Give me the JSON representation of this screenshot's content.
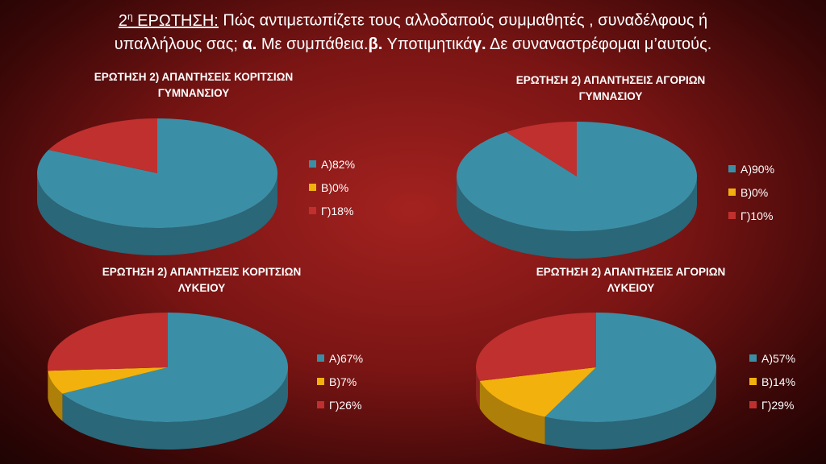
{
  "question": {
    "num": "2",
    "sup": "η",
    "label": " ΕΡΩΤΗΣΗ:",
    "text1": " Πώς αντιμετωπίζετε τους αλλοδαπούς συμμαθητές , συναδέλφους ή",
    "text2": "υπαλλήλους σας; ",
    "opt_a": "α.",
    "text3": "  Με συμπάθεια.",
    "opt_b": "β.",
    "text4": " Υποτιμητικά",
    "opt_c": "γ.",
    "text5": " Δε συναναστρέφομαι μ’αυτούς."
  },
  "colors": {
    "A": "#3a8fa6",
    "B": "#f2b10d",
    "C": "#c0302e"
  },
  "chart_data": [
    {
      "type": "pie",
      "title_line1": "ΕΡΩΤΗΣΗ 2) ΑΠΑΝΤΗΣΕΙΣ ΚΟΡΙΤΣΙΩΝ",
      "title_line2": "ΓΥΜΝΑΝΣΙΟΥ",
      "slices": [
        {
          "label": "Α)82%",
          "value": 82,
          "key": "A"
        },
        {
          "label": "Β)0%",
          "value": 0,
          "key": "B"
        },
        {
          "label": "Γ)18%",
          "value": 18,
          "key": "C"
        }
      ],
      "legend": "right"
    },
    {
      "type": "pie",
      "title_line1": "ΕΡΩΤΗΣΗ 2) ΑΠΑΝΤΗΣΕΙΣ ΑΓΟΡΙΩΝ",
      "title_line2": "ΓΥΜΝΑΣΙΟΥ",
      "slices": [
        {
          "label": "Α)90%",
          "value": 90,
          "key": "A"
        },
        {
          "label": "Β)0%",
          "value": 0,
          "key": "B"
        },
        {
          "label": "Γ)10%",
          "value": 10,
          "key": "C"
        }
      ],
      "legend": "right"
    },
    {
      "type": "pie",
      "title_line1": "ΕΡΩΤΗΣΗ 2) ΑΠΑΝΤΗΣΕΙΣ ΚΟΡΙΤΣΙΩΝ",
      "title_line2": "ΛΥΚΕΙΟΥ",
      "slices": [
        {
          "label": "Α)67%",
          "value": 67,
          "key": "A"
        },
        {
          "label": "Β)7%",
          "value": 7,
          "key": "B"
        },
        {
          "label": "Γ)26%",
          "value": 26,
          "key": "C"
        }
      ],
      "legend": "right"
    },
    {
      "type": "pie",
      "title_line1": "ΕΡΩΤΗΣΗ 2) ΑΠΑΝΤΗΣΕΙΣ ΑΓΟΡΙΩΝ",
      "title_line2": "ΛΥΚΕΙΟΥ",
      "slices": [
        {
          "label": "Α)57%",
          "value": 57,
          "key": "A"
        },
        {
          "label": "Β)14%",
          "value": 14,
          "key": "B"
        },
        {
          "label": "Γ)29%",
          "value": 29,
          "key": "C"
        }
      ],
      "legend": "right"
    }
  ]
}
